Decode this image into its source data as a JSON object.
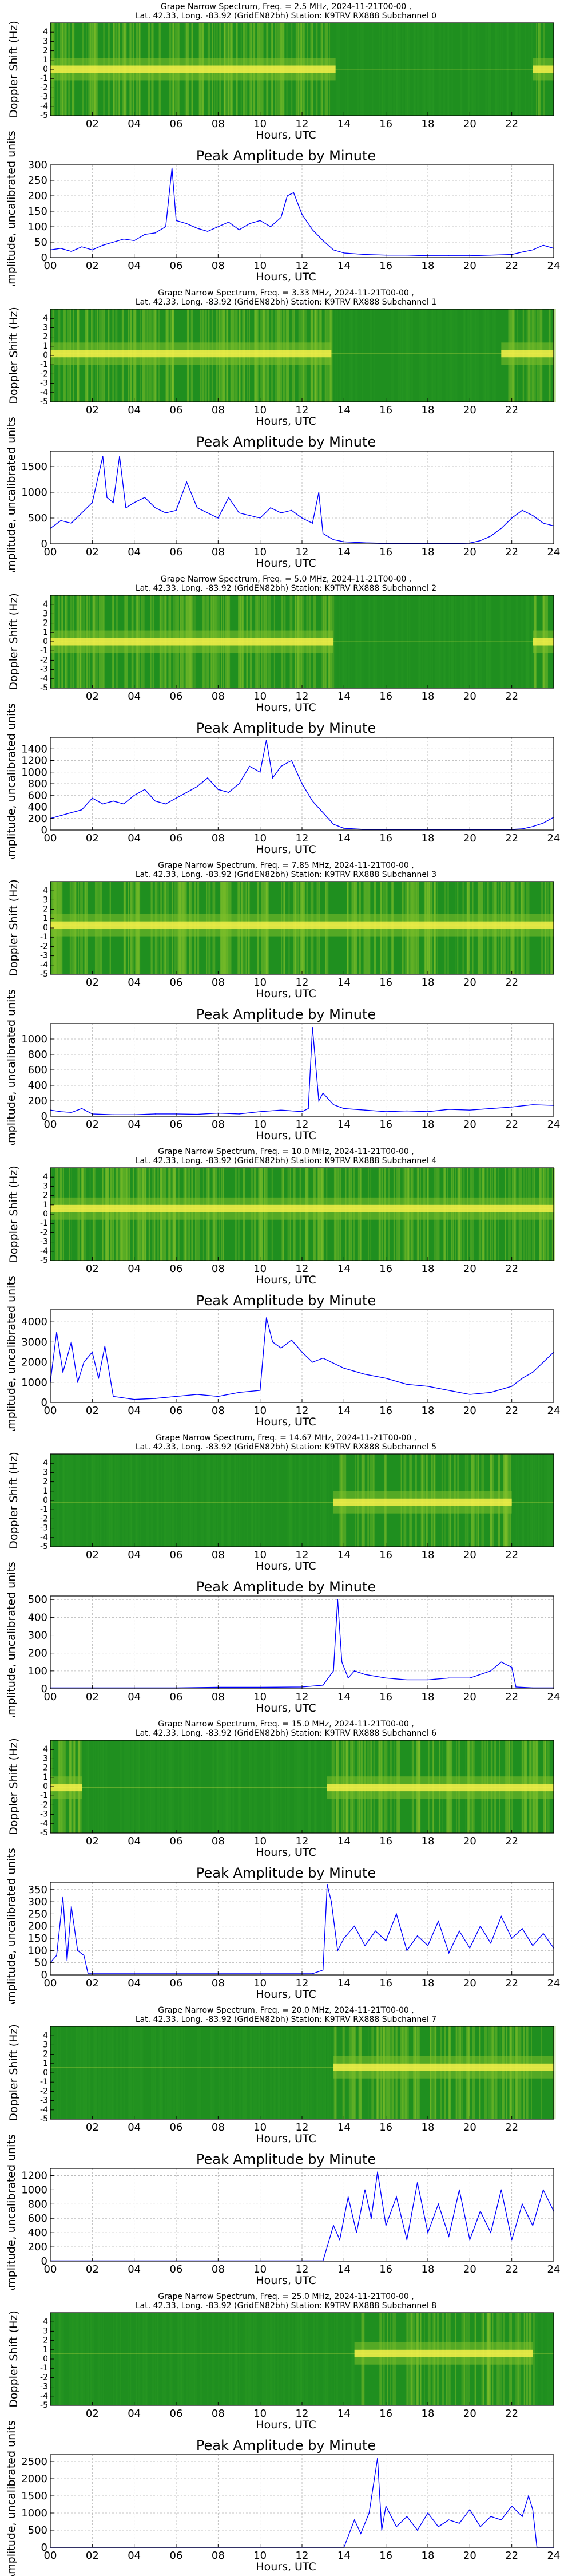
{
  "colors": {
    "spectrogram_bg": "#1f8f1f",
    "spectrogram_mid": "#7fbf2a",
    "spectrogram_hot": "#f4f04a",
    "line": "#0000ff",
    "grid": "#b0b0b0",
    "axis": "#000000"
  },
  "common": {
    "x_label": "Hours, UTC",
    "doppler_label": "Doppler Shift (Hz)",
    "amp_label": "Amplitude, uncalibrated units",
    "peak_title": "Peak Amplitude by Minute",
    "x_ticks": [
      "00",
      "02",
      "04",
      "06",
      "08",
      "10",
      "12",
      "14",
      "16",
      "18",
      "20",
      "22",
      "24"
    ],
    "spec_x_ticks": [
      "02",
      "04",
      "06",
      "08",
      "10",
      "12",
      "14",
      "16",
      "18",
      "20",
      "22"
    ],
    "doppler_ticks": [
      "4",
      "3",
      "2",
      "1",
      "0",
      "-1",
      "-2",
      "-3",
      "-4",
      "-5"
    ],
    "latlong_line": "Lat.  42.33, Long. -83.92 (GridEN82bh) Station: K9TRV RX888 Subchannel"
  },
  "channels": [
    {
      "title_line": "Grape Narrow Spectrum, Freq. = 2.5 MHz, 2024-11-21T00-00 ,",
      "subchannel": "0",
      "carrier": 0.0,
      "active": [
        [
          0,
          13.6
        ],
        [
          23,
          24
        ]
      ],
      "chart_data": {
        "type": "line",
        "title": "Peak Amplitude by Minute",
        "xlabel": "Hours, UTC",
        "ylabel": "Amplitude, uncalibrated units",
        "xlim": [
          0,
          24
        ],
        "ylim": [
          0,
          300
        ],
        "y_ticks": [
          0,
          50,
          100,
          150,
          200,
          250,
          300
        ],
        "x": [
          0,
          0.5,
          1,
          1.5,
          2,
          2.5,
          3,
          3.5,
          4,
          4.5,
          5,
          5.5,
          5.8,
          6,
          6.5,
          7,
          7.5,
          8,
          8.5,
          9,
          9.5,
          10,
          10.5,
          11,
          11.3,
          11.6,
          12,
          12.5,
          13,
          13.5,
          14,
          15,
          16,
          17,
          18,
          19,
          20,
          21,
          22,
          22.5,
          23,
          23.5,
          24
        ],
        "values": [
          25,
          30,
          20,
          35,
          25,
          40,
          50,
          60,
          55,
          75,
          80,
          100,
          290,
          120,
          110,
          95,
          85,
          100,
          115,
          90,
          110,
          120,
          100,
          130,
          200,
          210,
          140,
          90,
          55,
          25,
          15,
          10,
          8,
          8,
          6,
          6,
          6,
          8,
          10,
          18,
          25,
          40,
          30
        ]
      }
    },
    {
      "title_line": "Grape Narrow Spectrum, Freq. = 3.33 MHz, 2024-11-21T00-00 ,",
      "subchannel": "1",
      "carrier": 0.2,
      "active": [
        [
          0,
          13.4
        ],
        [
          21.5,
          24
        ]
      ],
      "chart_data": {
        "type": "line",
        "title": "Peak Amplitude by Minute",
        "xlabel": "Hours, UTC",
        "ylabel": "Amplitude, uncalibrated units",
        "xlim": [
          0,
          24
        ],
        "ylim": [
          0,
          1800
        ],
        "y_ticks": [
          0,
          500,
          1000,
          1500
        ],
        "x": [
          0,
          0.5,
          1,
          1.5,
          2,
          2.5,
          2.7,
          3,
          3.3,
          3.6,
          4,
          4.5,
          5,
          5.5,
          6,
          6.5,
          7,
          7.5,
          8,
          8.5,
          9,
          9.5,
          10,
          10.5,
          11,
          11.5,
          12,
          12.5,
          12.8,
          13,
          13.5,
          14,
          15,
          16,
          17,
          18,
          19,
          20,
          20.5,
          21,
          21.5,
          22,
          22.5,
          23,
          23.5,
          24
        ],
        "values": [
          300,
          450,
          400,
          600,
          800,
          1700,
          900,
          800,
          1700,
          700,
          800,
          900,
          700,
          600,
          650,
          1200,
          700,
          600,
          500,
          900,
          600,
          550,
          500,
          700,
          600,
          650,
          500,
          400,
          1000,
          200,
          80,
          40,
          20,
          10,
          8,
          8,
          8,
          15,
          60,
          150,
          300,
          500,
          650,
          550,
          400,
          350
        ]
      }
    },
    {
      "title_line": "Grape Narrow Spectrum, Freq. = 5.0 MHz, 2024-11-21T00-00 ,",
      "subchannel": "2",
      "carrier": 0.0,
      "active": [
        [
          0,
          13.5
        ],
        [
          23,
          24
        ]
      ],
      "chart_data": {
        "type": "line",
        "title": "Peak Amplitude by Minute",
        "xlabel": "Hours, UTC",
        "ylabel": "Amplitude, uncalibrated units",
        "xlim": [
          0,
          24
        ],
        "ylim": [
          0,
          1600
        ],
        "y_ticks": [
          0,
          200,
          400,
          600,
          800,
          1000,
          1200,
          1400
        ],
        "x": [
          0,
          0.5,
          1,
          1.5,
          2,
          2.5,
          3,
          3.5,
          4,
          4.5,
          5,
          5.5,
          6,
          6.5,
          7,
          7.5,
          8,
          8.5,
          9,
          9.5,
          10,
          10.3,
          10.6,
          11,
          11.5,
          12,
          12.5,
          13,
          13.5,
          14,
          15,
          16,
          17,
          18,
          19,
          20,
          21,
          22,
          22.5,
          23,
          23.5,
          24
        ],
        "values": [
          200,
          250,
          300,
          350,
          550,
          450,
          500,
          450,
          600,
          700,
          500,
          450,
          550,
          650,
          750,
          900,
          700,
          650,
          800,
          1100,
          1000,
          1550,
          900,
          1100,
          1200,
          800,
          500,
          300,
          100,
          30,
          10,
          5,
          5,
          5,
          5,
          5,
          8,
          10,
          20,
          60,
          120,
          220
        ]
      }
    },
    {
      "title_line": "Grape Narrow Spectrum, Freq. = 7.85 MHz, 2024-11-21T00-00 ,",
      "subchannel": "3",
      "carrier": 0.3,
      "active": [
        [
          0,
          24
        ]
      ],
      "chart_data": {
        "type": "line",
        "title": "Peak Amplitude by Minute",
        "xlabel": "Hours, UTC",
        "ylabel": "Amplitude, uncalibrated units",
        "xlim": [
          0,
          24
        ],
        "ylim": [
          0,
          1200
        ],
        "y_ticks": [
          0,
          200,
          400,
          600,
          800,
          1000
        ],
        "x": [
          0,
          0.5,
          1,
          1.5,
          2,
          3,
          4,
          5,
          6,
          7,
          8,
          9,
          10,
          11,
          12,
          12.3,
          12.5,
          12.8,
          13,
          13.5,
          14,
          15,
          16,
          17,
          18,
          19,
          20,
          21,
          22,
          23,
          24
        ],
        "values": [
          80,
          60,
          50,
          100,
          30,
          20,
          20,
          30,
          30,
          25,
          40,
          30,
          60,
          80,
          60,
          100,
          1150,
          200,
          300,
          150,
          100,
          80,
          60,
          70,
          60,
          90,
          80,
          100,
          120,
          150,
          140
        ]
      }
    },
    {
      "title_line": "Grape Narrow Spectrum, Freq. = 10.0 MHz, 2024-11-21T00-00 ,",
      "subchannel": "4",
      "carrier": 0.6,
      "active": [
        [
          0,
          24
        ]
      ],
      "chart_data": {
        "type": "line",
        "title": "Peak Amplitude by Minute",
        "xlabel": "Hours, UTC",
        "ylabel": "Amplitude, uncalibrated units",
        "xlim": [
          0,
          24
        ],
        "ylim": [
          0,
          4600
        ],
        "y_ticks": [
          0,
          1000,
          2000,
          3000,
          4000
        ],
        "x": [
          0,
          0.3,
          0.6,
          1,
          1.3,
          1.6,
          2,
          2.3,
          2.6,
          3,
          4,
          5,
          6,
          7,
          8,
          9,
          10,
          10.3,
          10.6,
          11,
          11.5,
          12,
          12.5,
          13,
          14,
          15,
          16,
          17,
          18,
          19,
          20,
          21,
          22,
          22.5,
          23,
          23.5,
          24
        ],
        "values": [
          1000,
          3500,
          1500,
          3000,
          1000,
          2000,
          2500,
          1200,
          2800,
          300,
          150,
          200,
          300,
          400,
          300,
          500,
          600,
          4200,
          3000,
          2700,
          3100,
          2500,
          2000,
          2200,
          1700,
          1400,
          1200,
          900,
          800,
          600,
          400,
          500,
          800,
          1200,
          1500,
          2000,
          2500
        ]
      }
    },
    {
      "title_line": "Grape Narrow Spectrum, Freq. = 14.67 MHz, 2024-11-21T00-00 ,",
      "subchannel": "5",
      "carrier": -0.2,
      "active": [
        [
          13.5,
          22
        ]
      ],
      "chart_data": {
        "type": "line",
        "title": "Peak Amplitude by Minute",
        "xlabel": "Hours, UTC",
        "ylabel": "Amplitude, uncalibrated units",
        "xlim": [
          0,
          24
        ],
        "ylim": [
          0,
          520
        ],
        "y_ticks": [
          0,
          100,
          200,
          300,
          400,
          500
        ],
        "x": [
          0,
          2,
          4,
          6,
          8,
          10,
          12,
          13,
          13.5,
          13.7,
          13.9,
          14.2,
          14.5,
          15,
          16,
          17,
          18,
          19,
          20,
          20.5,
          21,
          21.5,
          22,
          22.2,
          23,
          24
        ],
        "values": [
          5,
          5,
          5,
          5,
          8,
          8,
          10,
          20,
          100,
          500,
          150,
          60,
          100,
          80,
          60,
          50,
          50,
          60,
          60,
          80,
          100,
          150,
          120,
          10,
          5,
          5
        ]
      }
    },
    {
      "title_line": "Grape Narrow Spectrum, Freq. = 15.0 MHz, 2024-11-21T00-00 ,",
      "subchannel": "6",
      "carrier": -0.1,
      "active": [
        [
          0,
          1.5
        ],
        [
          13.2,
          24
        ]
      ],
      "chart_data": {
        "type": "line",
        "title": "Peak Amplitude by Minute",
        "xlabel": "Hours, UTC",
        "ylabel": "Amplitude, uncalibrated units",
        "xlim": [
          0,
          24
        ],
        "ylim": [
          0,
          380
        ],
        "y_ticks": [
          0,
          50,
          100,
          150,
          200,
          250,
          300,
          350
        ],
        "x": [
          0,
          0.3,
          0.6,
          0.8,
          1,
          1.3,
          1.6,
          1.8,
          2,
          4,
          6,
          8,
          10,
          12,
          12.5,
          13,
          13.2,
          13.4,
          13.7,
          14,
          14.5,
          15,
          15.5,
          16,
          16.5,
          17,
          17.5,
          18,
          18.5,
          19,
          19.5,
          20,
          20.5,
          21,
          21.5,
          22,
          22.5,
          23,
          23.5,
          24
        ],
        "values": [
          50,
          80,
          320,
          60,
          280,
          100,
          80,
          5,
          5,
          5,
          5,
          5,
          5,
          5,
          5,
          20,
          370,
          300,
          100,
          150,
          200,
          120,
          180,
          140,
          250,
          100,
          160,
          120,
          220,
          90,
          180,
          110,
          200,
          130,
          240,
          150,
          190,
          120,
          170,
          110
        ]
      }
    },
    {
      "title_line": "Grape Narrow Spectrum, Freq. = 20.0 MHz, 2024-11-21T00-00 ,",
      "subchannel": "7",
      "carrier": 0.6,
      "active": [
        [
          13.5,
          24
        ]
      ],
      "chart_data": {
        "type": "line",
        "title": "Peak Amplitude by Minute",
        "xlabel": "Hours, UTC",
        "ylabel": "Amplitude, uncalibrated units",
        "xlim": [
          0,
          24
        ],
        "ylim": [
          0,
          1300
        ],
        "y_ticks": [
          0,
          200,
          400,
          600,
          800,
          1000,
          1200
        ],
        "x": [
          0,
          2,
          4,
          6,
          8,
          10,
          12,
          13,
          13.5,
          13.8,
          14.2,
          14.6,
          15,
          15.3,
          15.6,
          16,
          16.5,
          17,
          17.5,
          18,
          18.5,
          19,
          19.5,
          20,
          20.5,
          21,
          21.5,
          22,
          22.5,
          23,
          23.5,
          24
        ],
        "values": [
          5,
          5,
          5,
          5,
          5,
          5,
          5,
          5,
          500,
          300,
          900,
          400,
          1000,
          600,
          1250,
          500,
          900,
          300,
          1100,
          400,
          800,
          350,
          1000,
          300,
          700,
          400,
          1000,
          300,
          800,
          500,
          1000,
          700
        ]
      }
    },
    {
      "title_line": "Grape Narrow Spectrum, Freq. = 25.0 MHz, 2024-11-21T00-00 ,",
      "subchannel": "8",
      "carrier": 0.6,
      "active": [
        [
          14.5,
          23
        ]
      ],
      "chart_data": {
        "type": "line",
        "title": "Peak Amplitude by Minute",
        "xlabel": "Hours, UTC",
        "ylabel": "Amplitude, uncalibrated units",
        "xlim": [
          0,
          24
        ],
        "ylim": [
          0,
          2700
        ],
        "y_ticks": [
          0,
          500,
          1000,
          1500,
          2000,
          2500
        ],
        "x": [
          0,
          14,
          14.5,
          14.8,
          15.2,
          15.6,
          15.8,
          16,
          16.5,
          17,
          17.5,
          18,
          18.5,
          19,
          19.5,
          20,
          20.5,
          21,
          21.5,
          22,
          22.5,
          22.8,
          23,
          23.2,
          24
        ],
        "values": [
          0,
          0,
          800,
          400,
          1000,
          2600,
          500,
          1200,
          600,
          900,
          500,
          1000,
          600,
          800,
          700,
          1100,
          600,
          900,
          800,
          1200,
          900,
          1500,
          1100,
          0,
          0
        ]
      }
    }
  ]
}
